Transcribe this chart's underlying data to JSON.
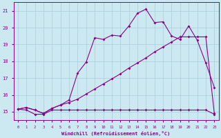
{
  "xlabel": "Windchill (Refroidissement éolien,°C)",
  "bg_color": "#cce8f0",
  "grid_color": "#aaccd8",
  "line_color": "#880088",
  "spine_color": "#880088",
  "xlim": [
    -0.5,
    23.5
  ],
  "ylim": [
    14.5,
    21.5
  ],
  "yticks": [
    15,
    16,
    17,
    18,
    19,
    20,
    21
  ],
  "xticks": [
    0,
    1,
    2,
    3,
    4,
    5,
    6,
    7,
    8,
    9,
    10,
    11,
    12,
    13,
    14,
    15,
    16,
    17,
    18,
    19,
    20,
    21,
    22,
    23
  ],
  "series1_x": [
    0,
    1,
    2,
    3,
    4,
    5,
    6,
    7,
    8,
    9,
    10,
    11,
    12,
    13,
    14,
    15,
    16,
    17,
    18,
    19,
    20,
    21,
    22,
    23
  ],
  "series1_y": [
    15.15,
    15.1,
    14.85,
    14.85,
    15.1,
    15.1,
    15.1,
    15.1,
    15.1,
    15.1,
    15.1,
    15.1,
    15.1,
    15.1,
    15.1,
    15.1,
    15.1,
    15.1,
    15.1,
    15.1,
    15.1,
    15.1,
    15.1,
    14.85
  ],
  "series2_x": [
    0,
    1,
    2,
    3,
    4,
    5,
    6,
    7,
    8,
    9,
    10,
    11,
    12,
    13,
    14,
    15,
    16,
    17,
    18,
    19,
    20,
    21,
    22,
    23
  ],
  "series2_y": [
    15.15,
    15.25,
    15.1,
    14.9,
    15.2,
    15.4,
    15.55,
    15.75,
    16.05,
    16.35,
    16.65,
    16.95,
    17.25,
    17.6,
    17.9,
    18.2,
    18.55,
    18.85,
    19.15,
    19.45,
    19.45,
    19.45,
    19.45,
    14.9
  ],
  "series3_x": [
    0,
    1,
    2,
    3,
    4,
    5,
    6,
    7,
    8,
    9,
    10,
    11,
    12,
    13,
    14,
    15,
    16,
    17,
    18,
    19,
    20,
    21,
    22,
    23
  ],
  "series3_y": [
    15.15,
    15.25,
    15.1,
    14.9,
    15.2,
    15.4,
    15.7,
    17.3,
    17.95,
    19.4,
    19.3,
    19.55,
    19.5,
    20.1,
    20.85,
    21.1,
    20.3,
    20.35,
    19.5,
    19.3,
    20.1,
    19.25,
    17.9,
    16.45
  ]
}
